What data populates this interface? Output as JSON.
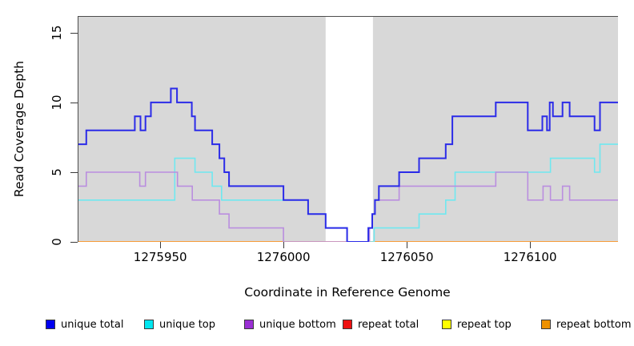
{
  "axes": {
    "xlabel": "Coordinate in Reference Genome",
    "ylabel": "Read Coverage Depth",
    "x_tick_labels": [
      "1275950",
      "1276000",
      "1276050",
      "1276100"
    ],
    "y_tick_labels": [
      "0",
      "5",
      "10",
      "15"
    ]
  },
  "legend": {
    "items": [
      {
        "label": "unique total",
        "color": "#0000f0"
      },
      {
        "label": "unique top",
        "color": "#00e6f0"
      },
      {
        "label": "unique bottom",
        "color": "#9a2fd4"
      },
      {
        "label": "repeat total",
        "color": "#ee1111"
      },
      {
        "label": "repeat top",
        "color": "#ffff00"
      },
      {
        "label": "repeat bottom",
        "color": "#ee9100"
      }
    ]
  },
  "chart_data": {
    "type": "line",
    "subtype": "step-coverage",
    "title": "",
    "xlabel": "Coordinate in Reference Genome",
    "ylabel": "Read Coverage Depth",
    "xlim": [
      1275916.5,
      1276135.7
    ],
    "ylim": [
      0,
      16.2
    ],
    "x_ticks": [
      1275950,
      1276000,
      1276050,
      1276100
    ],
    "y_ticks": [
      0,
      5,
      10,
      15
    ],
    "grid": false,
    "legend_position": "bottom",
    "plot_background": "#ffffff",
    "shading": {
      "color": "#d8d8d8",
      "regions": [
        [
          1275916.5,
          1276017.1
        ],
        [
          1276036.3,
          1276135.7
        ]
      ]
    },
    "series": [
      {
        "name": "repeat total",
        "color": "#cc2222",
        "width": 1.2,
        "steps": [
          [
            1275916.5,
            0
          ]
        ]
      },
      {
        "name": "repeat top",
        "color": "#ffff00",
        "width": 1.2,
        "steps": [
          [
            1275916.5,
            0
          ]
        ]
      },
      {
        "name": "repeat bottom",
        "color": "#ff9122",
        "width": 1.6,
        "steps": [
          [
            1275916.5,
            0
          ]
        ]
      },
      {
        "name": "unique top",
        "color": "#6fe8f0",
        "width": 1.6,
        "steps": [
          [
            1275916.5,
            3
          ],
          [
            1275955.9,
            6
          ],
          [
            1275964.1,
            5
          ],
          [
            1275971.1,
            4
          ],
          [
            1275974.9,
            3
          ],
          [
            1276010,
            2
          ],
          [
            1276017.1,
            1
          ],
          [
            1276025.8,
            0
          ],
          [
            1276036.8,
            1
          ],
          [
            1276055,
            2
          ],
          [
            1276065.8,
            3
          ],
          [
            1276069.6,
            5
          ],
          [
            1276108.3,
            6
          ],
          [
            1276126.2,
            5
          ],
          [
            1276128.4,
            7
          ]
        ]
      },
      {
        "name": "unique bottom",
        "color": "#ba8edf",
        "width": 1.6,
        "steps": [
          [
            1275916.5,
            4
          ],
          [
            1275920,
            5
          ],
          [
            1275941.7,
            4
          ],
          [
            1275944,
            5
          ],
          [
            1275957,
            4
          ],
          [
            1275963,
            3
          ],
          [
            1275974,
            2
          ],
          [
            1275977.9,
            1
          ],
          [
            1276000,
            0
          ],
          [
            1276034.9,
            1
          ],
          [
            1276036,
            2
          ],
          [
            1276037.1,
            3
          ],
          [
            1276046.9,
            4
          ],
          [
            1276086.1,
            5
          ],
          [
            1276099.1,
            3
          ],
          [
            1276105.3,
            4
          ],
          [
            1276108.3,
            3
          ],
          [
            1276113.2,
            4
          ],
          [
            1276116.1,
            3
          ]
        ]
      },
      {
        "name": "unique total",
        "color": "#2b2be8",
        "width": 2,
        "steps": [
          [
            1275916.5,
            7
          ],
          [
            1275920,
            8
          ],
          [
            1275939.7,
            9
          ],
          [
            1275942,
            8
          ],
          [
            1275944,
            9
          ],
          [
            1275946.2,
            10
          ],
          [
            1275954.3,
            11
          ],
          [
            1275956.8,
            10
          ],
          [
            1275962.8,
            9
          ],
          [
            1275964.1,
            8
          ],
          [
            1275971.1,
            7
          ],
          [
            1275974,
            6
          ],
          [
            1275976,
            5
          ],
          [
            1275977.9,
            4
          ],
          [
            1276000,
            3
          ],
          [
            1276010,
            2
          ],
          [
            1276017.1,
            1
          ],
          [
            1276025.8,
            0
          ],
          [
            1276034.4,
            1
          ],
          [
            1276036,
            2
          ],
          [
            1276037.1,
            3
          ],
          [
            1276038.7,
            4
          ],
          [
            1276046.9,
            5
          ],
          [
            1276055,
            6
          ],
          [
            1276065.8,
            7
          ],
          [
            1276068.5,
            9
          ],
          [
            1276086.1,
            10
          ],
          [
            1276099.1,
            8
          ],
          [
            1276105,
            9
          ],
          [
            1276106.9,
            8
          ],
          [
            1276108,
            10
          ],
          [
            1276109.3,
            9
          ],
          [
            1276113.2,
            10
          ],
          [
            1276116.1,
            9
          ],
          [
            1276126.2,
            8
          ],
          [
            1276128.4,
            10
          ]
        ]
      }
    ]
  }
}
